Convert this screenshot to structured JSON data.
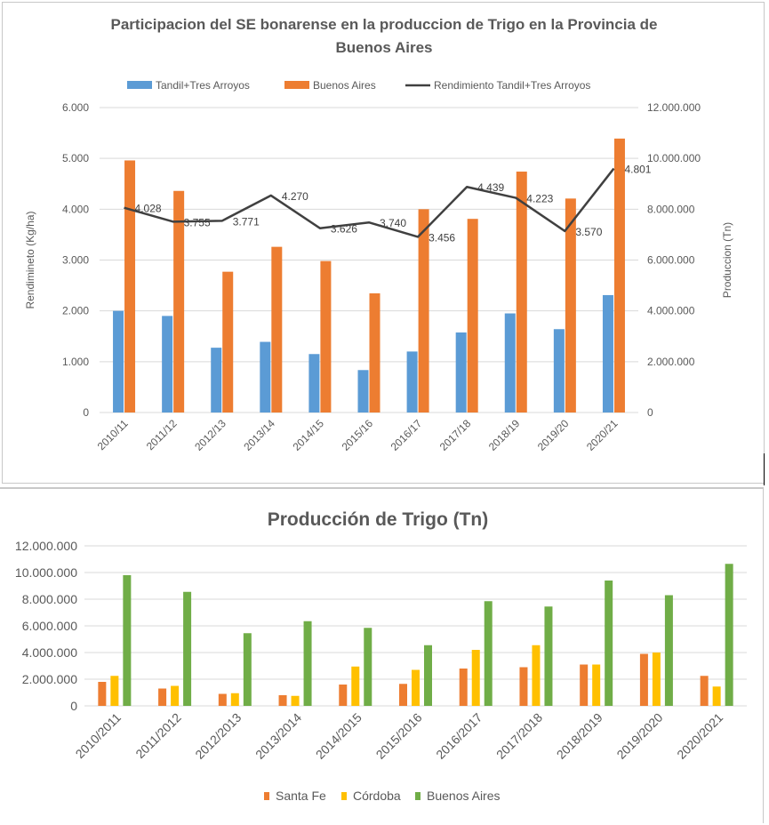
{
  "chart_data": [
    {
      "type": "bar",
      "title": "Participacion  del SE bonarense en la produccion de Trigo en la Provincia de Buenos Aires",
      "title_lines": [
        "Participacion  del SE bonarense en la produccion de Trigo en la Provincia de",
        "Buenos Aires"
      ],
      "categories": [
        "2010/11",
        "2011/12",
        "2012/13",
        "2013/14",
        "2014/15",
        "2015/16",
        "2016/17",
        "2017/18",
        "2018/19",
        "2019/20",
        "2020/21"
      ],
      "ylabel": "Rendimineto (Kg/ha)",
      "y2label": "Produccion (Tn)",
      "ylim": [
        0,
        6000
      ],
      "y2lim": [
        0,
        12000000
      ],
      "y_ticks": [
        "0",
        "1.000",
        "2.000",
        "3.000",
        "4.000",
        "5.000",
        "6.000"
      ],
      "y2_ticks": [
        "0",
        "2.000.000",
        "4.000.000",
        "6.000.000",
        "8.000.000",
        "10.000.000",
        "12.000.000"
      ],
      "legend_position": "top",
      "grid": true,
      "series": [
        {
          "name": "Tandil+Tres Arroyos",
          "type": "bar",
          "axis": "right",
          "color": "#5b9bd5",
          "values": [
            4000000,
            3800000,
            2550000,
            2780000,
            2300000,
            1670000,
            2400000,
            3150000,
            3900000,
            3280000,
            4620000
          ]
        },
        {
          "name": "Buenos Aires",
          "type": "bar",
          "axis": "right",
          "color": "#ed7d31",
          "values": [
            9920000,
            8720000,
            5540000,
            6520000,
            5960000,
            4690000,
            8000000,
            7620000,
            9480000,
            8420000,
            10780000
          ]
        },
        {
          "name": "Rendimiento Tandil+Tres Arroyos",
          "type": "line",
          "axis": "left",
          "color": "#404040",
          "values": [
            4028,
            3755,
            3771,
            4270,
            3626,
            3740,
            3456,
            4439,
            4223,
            3570,
            4801
          ],
          "labels": [
            "4.028",
            "3.755",
            "3.771",
            "4.270",
            "3.626",
            "3.740",
            "3.456",
            "4.439",
            "4.223",
            "3.570",
            "4.801"
          ]
        }
      ]
    },
    {
      "type": "bar",
      "title": "Producción de Trigo (Tn)",
      "categories": [
        "2010/2011",
        "2011/2012",
        "2012/2013",
        "2013/2014",
        "2014/2015",
        "2015/2016",
        "2016/2017",
        "2017/2018",
        "2018/2019",
        "2019/2020",
        "2020/2021"
      ],
      "ylim": [
        0,
        12000000
      ],
      "y_ticks": [
        "0",
        "2.000.000",
        "4.000.000",
        "6.000.000",
        "8.000.000",
        "10.000.000",
        "12.000.000"
      ],
      "legend_position": "bottom",
      "grid": true,
      "series": [
        {
          "name": "Santa Fe",
          "color": "#ed7d31",
          "values": [
            1800000,
            1300000,
            900000,
            800000,
            1600000,
            1650000,
            2800000,
            2900000,
            3100000,
            3900000,
            2250000
          ]
        },
        {
          "name": "Córdoba",
          "color": "#ffc000",
          "values": [
            2250000,
            1500000,
            950000,
            750000,
            2950000,
            2700000,
            4200000,
            4550000,
            3100000,
            4000000,
            1450000
          ]
        },
        {
          "name": "Buenos Aires",
          "color": "#70ad47",
          "values": [
            9800000,
            8550000,
            5450000,
            6350000,
            5850000,
            4550000,
            7850000,
            7450000,
            9400000,
            8300000,
            10650000
          ]
        }
      ]
    }
  ]
}
